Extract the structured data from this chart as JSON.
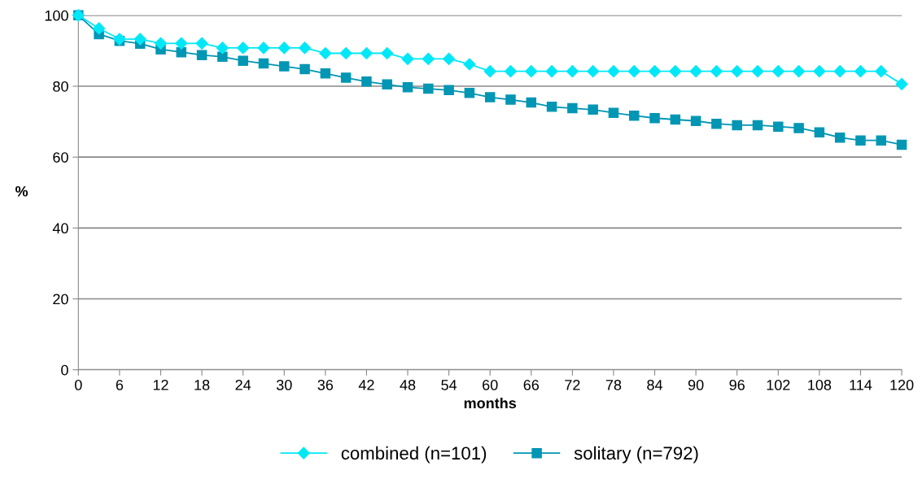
{
  "chart_data": {
    "type": "line",
    "xlabel": "months",
    "ylabel": "%",
    "x": [
      0,
      3,
      6,
      9,
      12,
      15,
      18,
      21,
      24,
      27,
      30,
      33,
      36,
      39,
      42,
      45,
      48,
      51,
      54,
      57,
      60,
      63,
      66,
      69,
      72,
      75,
      78,
      81,
      84,
      87,
      90,
      93,
      96,
      99,
      102,
      105,
      108,
      111,
      114,
      117,
      120
    ],
    "series": [
      {
        "name": "combined (n=101)",
        "color": "#00e8f8",
        "marker": "diamond",
        "values": [
          100,
          96.3,
          93.3,
          93.3,
          92.1,
          92.1,
          92.1,
          90.8,
          90.8,
          90.8,
          90.8,
          90.8,
          89.3,
          89.3,
          89.3,
          89.3,
          87.7,
          87.7,
          87.7,
          86.2,
          84.2,
          84.2,
          84.2,
          84.2,
          84.2,
          84.2,
          84.2,
          84.2,
          84.2,
          84.2,
          84.2,
          84.2,
          84.2,
          84.2,
          84.2,
          84.2,
          84.2,
          84.2,
          84.2,
          84.2,
          80.6
        ]
      },
      {
        "name": "solitary (n=792)",
        "color": "#0096b4",
        "marker": "square",
        "values": [
          100,
          94.7,
          92.8,
          92.0,
          90.4,
          89.6,
          88.8,
          88.3,
          87.2,
          86.4,
          85.6,
          84.8,
          83.6,
          82.4,
          81.3,
          80.5,
          79.7,
          79.3,
          78.9,
          78.1,
          76.9,
          76.2,
          75.4,
          74.2,
          73.8,
          73.4,
          72.5,
          71.7,
          71.0,
          70.6,
          70.2,
          69.4,
          69.0,
          69.0,
          68.6,
          68.2,
          67.0,
          65.5,
          64.7,
          64.7,
          63.5
        ]
      }
    ],
    "xlim": [
      0,
      120
    ],
    "xticks": [
      0,
      6,
      12,
      18,
      24,
      30,
      36,
      42,
      48,
      54,
      60,
      66,
      72,
      78,
      84,
      90,
      96,
      102,
      108,
      114,
      120
    ],
    "ylim": [
      0,
      100
    ],
    "yticks": [
      0,
      20,
      40,
      60,
      80,
      100
    ],
    "grid": "y",
    "legend": "bottom",
    "line_style": "solid"
  }
}
